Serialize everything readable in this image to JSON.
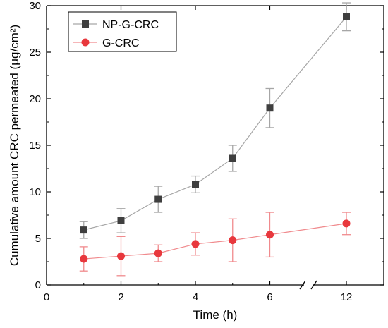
{
  "chart_data": {
    "type": "line",
    "xlabel": "Time (h)",
    "ylabel": "Cumulative amount CRC permeated (μg/cm²)",
    "ylim": [
      0,
      30
    ],
    "y_ticks": [
      0,
      5,
      10,
      15,
      20,
      25,
      30
    ],
    "x_ticks": [
      0,
      2,
      4,
      6,
      12
    ],
    "x_axis_break": "between 6 and 12",
    "legend_position": "top-left",
    "grid": false,
    "x": [
      1,
      2,
      3,
      4,
      5,
      6,
      12
    ],
    "series": [
      {
        "name": "NP-G-CRC",
        "marker": "square",
        "color": "#3f3f3f",
        "line_color": "#a6a6a6",
        "values": [
          5.9,
          6.9,
          9.2,
          10.8,
          13.6,
          19.0,
          28.8
        ],
        "errors": [
          0.9,
          1.3,
          1.4,
          0.9,
          1.4,
          2.1,
          1.5
        ]
      },
      {
        "name": "G-CRC",
        "marker": "circle",
        "color": "#e8383d",
        "line_color": "#f08a8d",
        "values": [
          2.8,
          3.1,
          3.4,
          4.4,
          4.8,
          5.4,
          6.6
        ],
        "errors": [
          1.3,
          2.1,
          0.9,
          1.2,
          2.3,
          2.4,
          1.2
        ]
      }
    ]
  }
}
